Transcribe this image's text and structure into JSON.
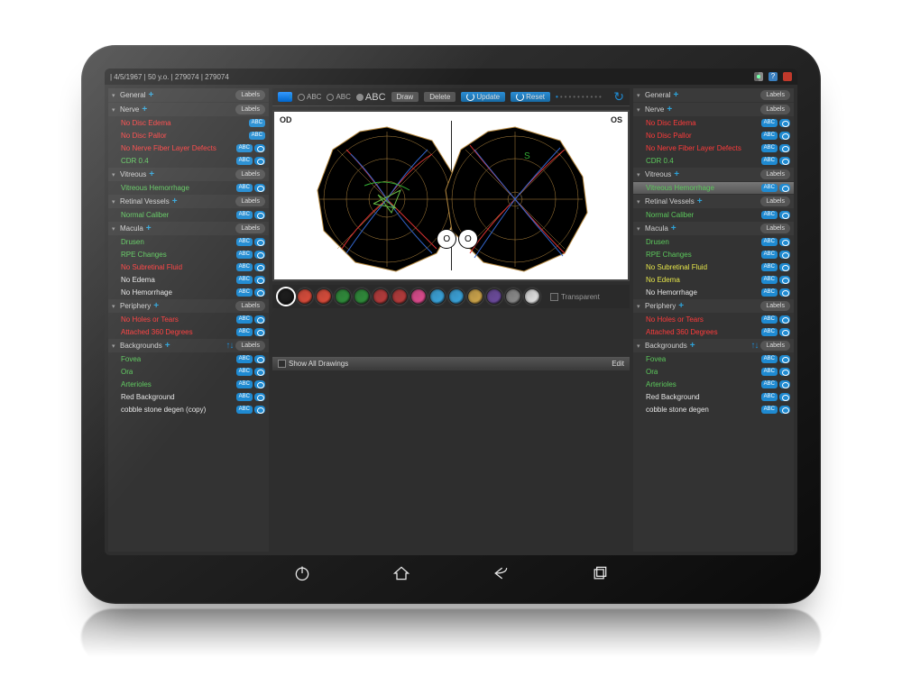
{
  "patient_meta": "| 4/5/1967 | 50 y.o. | 279074 | 279074",
  "topbar_icons": [
    "gear",
    "help",
    "close"
  ],
  "toolbar": {
    "abc_small1": "ABC",
    "abc_small2": "ABC",
    "abc_large": "ABC",
    "draw": "Draw",
    "delete": "Delete",
    "update": "Update",
    "reset": "Reset"
  },
  "canvas": {
    "od_label": "OD",
    "os_label": "OS"
  },
  "palette": {
    "colors": [
      "#1a1a1a",
      "#d64b3a",
      "#d64b3a",
      "#2f8a3a",
      "#2f8a3a",
      "#b33b3b",
      "#b33b3b",
      "#d94b8c",
      "#3aa0d6",
      "#3aa0d6",
      "#caa24a",
      "#6a4a9a",
      "#888888",
      "#dddddd"
    ],
    "selected_index": 0,
    "transparent_label": "Transparent"
  },
  "drawings": {
    "show_all": "Show All Drawings",
    "edit": "Edit"
  },
  "sections_left": [
    {
      "title": "General",
      "items": []
    },
    {
      "title": "Nerve",
      "items": [
        {
          "label": "No Disc Edema",
          "color": "red",
          "type": "abc"
        },
        {
          "label": "No Disc Pallor",
          "color": "red",
          "type": "abc"
        },
        {
          "label": "No Nerve Fiber Layer Defects",
          "color": "red",
          "type": "eye"
        },
        {
          "label": "CDR 0.4",
          "color": "green",
          "type": "eye"
        }
      ]
    },
    {
      "title": "Vitreous",
      "items": [
        {
          "label": "Vitreous Hemorrhage",
          "color": "green",
          "type": "eye"
        }
      ]
    },
    {
      "title": "Retinal Vessels",
      "items": [
        {
          "label": "Normal Caliber",
          "color": "green",
          "type": "eye"
        }
      ]
    },
    {
      "title": "Macula",
      "items": [
        {
          "label": "Drusen",
          "color": "green",
          "type": "eye"
        },
        {
          "label": "RPE Changes",
          "color": "green",
          "type": "eye"
        },
        {
          "label": "No Subretinal Fluid",
          "color": "red",
          "type": "eye"
        },
        {
          "label": "No Edema",
          "color": "white",
          "type": "eye"
        },
        {
          "label": "No Hemorrhage",
          "color": "white",
          "type": "eye"
        }
      ]
    },
    {
      "title": "Periphery",
      "items": [
        {
          "label": "No Holes or Tears",
          "color": "red",
          "type": "eye"
        },
        {
          "label": "Attached 360 Degrees",
          "color": "red",
          "type": "eye"
        }
      ]
    },
    {
      "title": "Backgrounds",
      "arrows": true,
      "items": [
        {
          "label": "Fovea",
          "color": "green",
          "type": "eye"
        },
        {
          "label": "Ora",
          "color": "green",
          "type": "eye"
        },
        {
          "label": "Arterioles",
          "color": "green",
          "type": "eye"
        },
        {
          "label": "Red Background",
          "color": "white",
          "type": "eye"
        },
        {
          "label": "cobble stone degen (copy)",
          "color": "white",
          "type": "eye"
        }
      ]
    }
  ],
  "sections_right": [
    {
      "title": "General",
      "items": []
    },
    {
      "title": "Nerve",
      "items": [
        {
          "label": "No Disc Edema",
          "color": "red",
          "type": "eye"
        },
        {
          "label": "No Disc Pallor",
          "color": "red",
          "type": "eye"
        },
        {
          "label": "No Nerve Fiber Layer Defects",
          "color": "red",
          "type": "eye"
        },
        {
          "label": "CDR 0.4",
          "color": "green",
          "type": "eye"
        }
      ]
    },
    {
      "title": "Vitreous",
      "items": [
        {
          "label": "Vitreous Hemorrhage",
          "color": "green",
          "type": "eye",
          "selected": true
        }
      ]
    },
    {
      "title": "Retinal Vessels",
      "items": [
        {
          "label": "Normal Caliber",
          "color": "green",
          "type": "eye"
        }
      ]
    },
    {
      "title": "Macula",
      "items": [
        {
          "label": "Drusen",
          "color": "green",
          "type": "eye"
        },
        {
          "label": "RPE Changes",
          "color": "green",
          "type": "eye"
        },
        {
          "label": "No Subretinal Fluid",
          "color": "yellow",
          "type": "eye"
        },
        {
          "label": "No Edema",
          "color": "yellow",
          "type": "eye"
        },
        {
          "label": "No Hemorrhage",
          "color": "white",
          "type": "eye"
        }
      ]
    },
    {
      "title": "Periphery",
      "items": [
        {
          "label": "No Holes or Tears",
          "color": "red",
          "type": "eye"
        },
        {
          "label": "Attached 360 Degrees",
          "color": "red",
          "type": "eye"
        }
      ]
    },
    {
      "title": "Backgrounds",
      "arrows": true,
      "items": [
        {
          "label": "Fovea",
          "color": "green",
          "type": "eye"
        },
        {
          "label": "Ora",
          "color": "green",
          "type": "eye"
        },
        {
          "label": "Arterioles",
          "color": "green",
          "type": "eye"
        },
        {
          "label": "Red Background",
          "color": "white",
          "type": "eye"
        },
        {
          "label": "cobble stone degen",
          "color": "white",
          "type": "eye"
        }
      ]
    }
  ],
  "labels_btn": "Labels"
}
